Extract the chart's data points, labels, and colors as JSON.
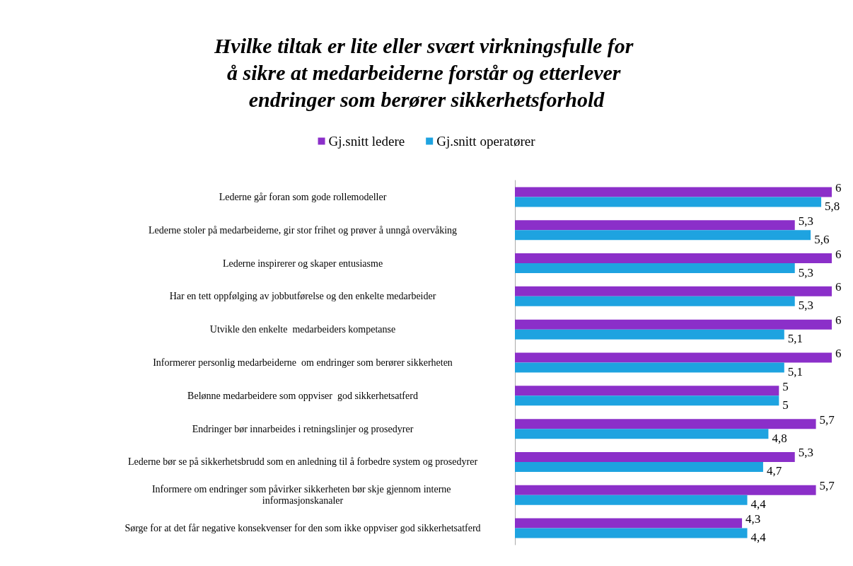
{
  "chart_data": {
    "type": "bar",
    "orientation": "horizontal",
    "title": "Hvilke tiltak er lite eller svært virkningsfulle for å sikre at medarbeiderne forstår og etterlever endringer som berører sikkerhetsforhold",
    "categories": [
      "Lederne går foran som gode rollemodeller",
      "Lederne stoler på medarbeiderne, gir stor frihet og prøver å unngå overvåking",
      "Lederne inspirerer og skaper entusiasme",
      "Har en tett oppfølging av jobbutførelse og den enkelte medarbeider",
      "Utvikle den enkelte  medarbeiders kompetanse",
      "Informerer personlig medarbeiderne  om endringer som berører sikkerheten",
      "Belønne medarbeidere som oppviser  god sikkerhetsatferd",
      "Endringer bør innarbeides i retningslinjer og prosedyrer",
      "Lederne bør se på sikkerhetsbrudd som en anledning til å forbedre system og prosedyrer",
      "Informere om endringer som påvirker sikkerheten bør skje gjennom interne informasjonskanaler",
      "Sørge for at det får negative konsekvenser for den som ikke oppviser god sikkerhetsatferd"
    ],
    "series": [
      {
        "name": "Gj.snitt ledere",
        "color": "#8b2fc9",
        "values": [
          6,
          5.3,
          6,
          6,
          6,
          6,
          5,
          5.7,
          5.3,
          5.7,
          4.3
        ],
        "value_labels": [
          "6",
          "5,3",
          "6",
          "6",
          "6",
          "6",
          "5",
          "5,7",
          "5,3",
          "5,7",
          "4,3"
        ]
      },
      {
        "name": "Gj.snitt operatører",
        "color": "#1ea3e0",
        "values": [
          5.8,
          5.6,
          5.3,
          5.3,
          5.1,
          5.1,
          5,
          4.8,
          4.7,
          4.4,
          4.4
        ],
        "value_labels": [
          "5,8",
          "5,6",
          "5,3",
          "5,3",
          "5,1",
          "5,1",
          "5",
          "4,8",
          "4,7",
          "4,4",
          "4,4"
        ]
      }
    ],
    "legend": "top",
    "grid": false
  }
}
